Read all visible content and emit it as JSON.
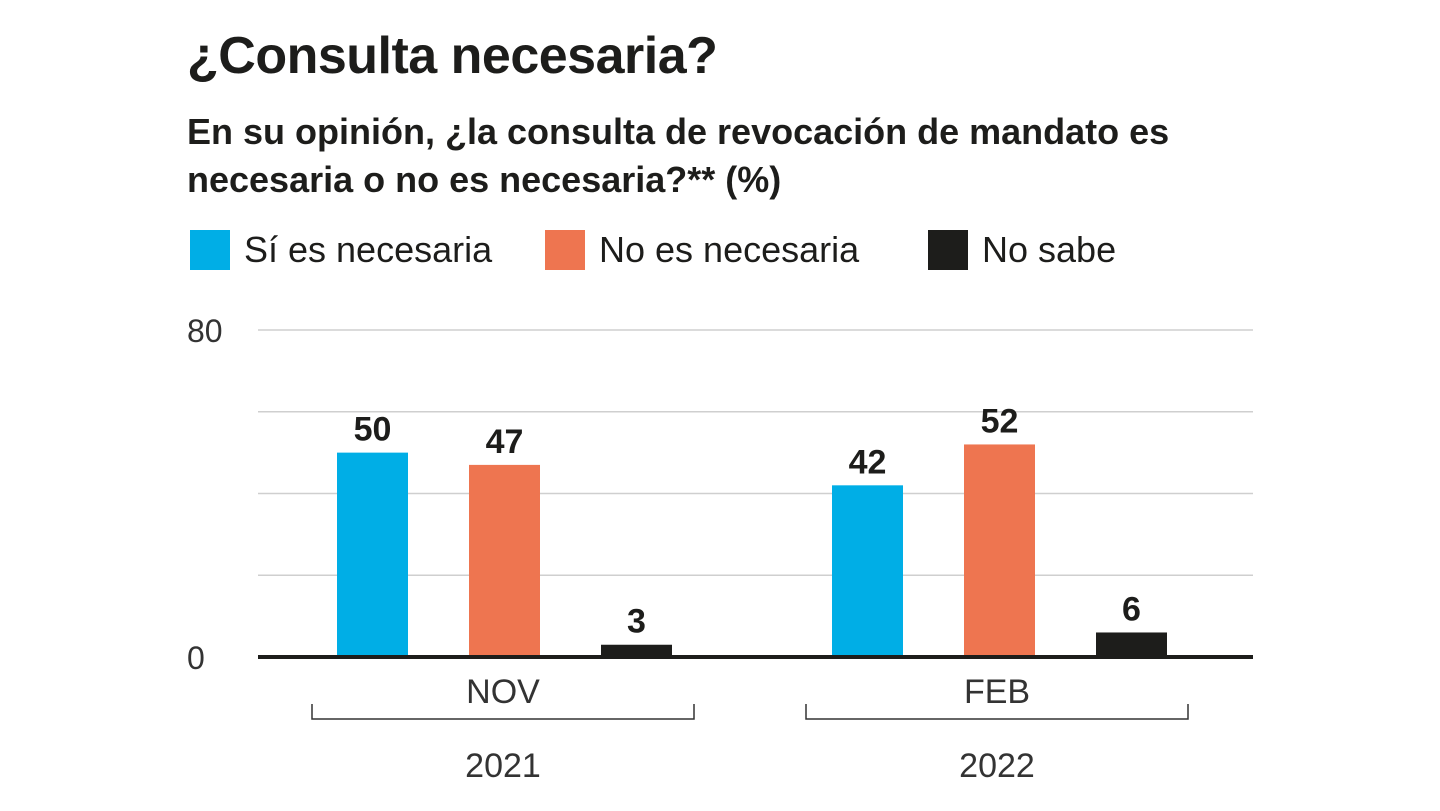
{
  "title": "¿Consulta necesaria?",
  "subtitle": "En su opinión, ¿la consulta de revocación de mandato es necesaria o no es necesaria?** (%)",
  "chart_data": {
    "type": "bar",
    "categories": [
      "NOV",
      "FEB"
    ],
    "groups": [
      "2021",
      "2022"
    ],
    "series": [
      {
        "name": "Sí es necesaria",
        "color": "#00aee6",
        "values": [
          50,
          42
        ]
      },
      {
        "name": "No es necesaria",
        "color": "#ee7550",
        "values": [
          47,
          52
        ]
      },
      {
        "name": "No sabe",
        "color": "#1d1d1b",
        "values": [
          3,
          6
        ]
      }
    ],
    "yticks": [
      {
        "value": 0,
        "label": "0"
      },
      {
        "value": 80,
        "label": "80"
      }
    ],
    "ylim": [
      0,
      80
    ],
    "grid": true,
    "gridlines": [
      20,
      40,
      60,
      80
    ],
    "data_labels": true,
    "legend": "top"
  }
}
